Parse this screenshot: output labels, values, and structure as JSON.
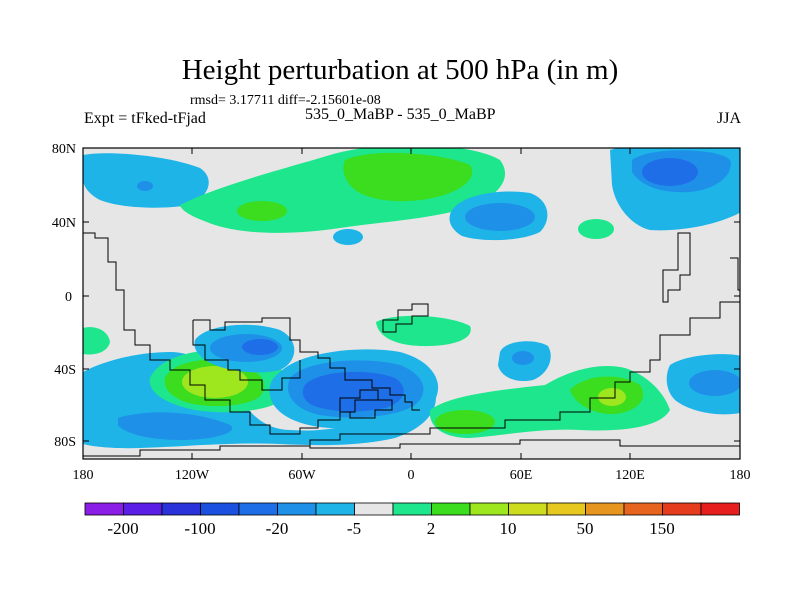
{
  "title": "Height perturbation at 500 hPa (in m)",
  "stats": "rmsd= 3.17711 diff=-2.15601e-08",
  "left_label": "Expt = tFked-tFjad",
  "center_label": "535_0_MaBP - 535_0_MaBP",
  "right_label": "JJA",
  "lat_ticks": [
    "80N",
    "40N",
    "0",
    "40S",
    "80S"
  ],
  "lon_ticks": [
    "180",
    "120W",
    "60W",
    "0",
    "60E",
    "120E",
    "180"
  ],
  "colorbar": {
    "colors": [
      "#8a1ee6",
      "#5a1ee6",
      "#2a33d9",
      "#1a4fe0",
      "#1e6ee8",
      "#1e90e8",
      "#1eb4e8",
      "#e6e6e6",
      "#1ee68c",
      "#3cdc1e",
      "#9ee61e",
      "#cddc1e",
      "#e6c81e",
      "#e6961e",
      "#e6641e",
      "#e63c1e",
      "#e61e1e"
    ],
    "labels": [
      "-200",
      "-100",
      "-20",
      "-5",
      "2",
      "10",
      "50",
      "150"
    ]
  },
  "map_colors": {
    "background": "#e6e6e6",
    "lblue": "#1eb4e8",
    "mblue": "#1e90e8",
    "dblue": "#1e6ee8",
    "lgreen": "#1ee68c",
    "green": "#3cdc1e",
    "yellow": "#9ee61e"
  }
}
